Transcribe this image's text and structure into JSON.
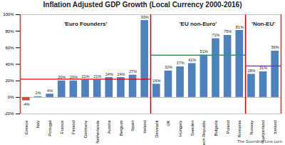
{
  "chart_data": {
    "type": "bar",
    "title": "Inflation Adjusted GDP Growth (Local Currency 2000-2016)",
    "source": "The Sounding Line.com",
    "categories": [
      "Greece",
      "Italy",
      "Portugal",
      "France",
      "Finland",
      "Germany",
      "Netherlands",
      "Austria",
      "Belgium",
      "Spain",
      "Ireland",
      "Denmark",
      "UK",
      "Hungary",
      "Sweden",
      "Czech Republic",
      "Bulgaria",
      "Poland",
      "Romania",
      "Norway",
      "Switzerland",
      "Iceland"
    ],
    "values": [
      -4,
      1,
      4,
      20,
      20,
      21,
      21,
      24,
      24,
      27,
      93,
      16,
      32,
      37,
      41,
      51,
      71,
      75,
      81,
      28,
      31,
      56
    ],
    "value_labels": [
      "-4%",
      "1%",
      "4%",
      "20%",
      "20%",
      "21%",
      "21%",
      "24%",
      "24%",
      "27%",
      "93%",
      "16%",
      "32%",
      "37%",
      "41%",
      "51%",
      "71%",
      "75%",
      "81%",
      "28%",
      "31%",
      "56%"
    ],
    "colors": [
      "#c0504d",
      "#4f81bd",
      "#4f81bd",
      "#4f81bd",
      "#4f81bd",
      "#4f81bd",
      "#4f81bd",
      "#4f81bd",
      "#4f81bd",
      "#4f81bd",
      "#4f81bd",
      "#4f81bd",
      "#4f81bd",
      "#4f81bd",
      "#4f81bd",
      "#4f81bd",
      "#4f81bd",
      "#4f81bd",
      "#4f81bd",
      "#4f81bd",
      "#4f81bd",
      "#4f81bd"
    ],
    "data_labels": true,
    "groups": [
      {
        "name": "'Euro Founders'",
        "count": 11,
        "average": 22,
        "color": "#e00000"
      },
      {
        "name": "'EU non-Euro'",
        "count": 8,
        "average": 51,
        "color": "#00b050"
      },
      {
        "name": "'Non-EU'",
        "count": 3,
        "average": 38,
        "color": "#7030a0"
      }
    ],
    "ylim": [
      -20,
      100
    ],
    "yticks": [
      {
        "value": -20,
        "label": "-20%"
      },
      {
        "value": 0,
        "label": "0%"
      },
      {
        "value": 20,
        "label": "20%"
      },
      {
        "value": 40,
        "label": "40%"
      },
      {
        "value": 60,
        "label": "60%"
      },
      {
        "value": 80,
        "label": "80%"
      },
      {
        "value": 100,
        "label": "100%"
      }
    ],
    "grid": false
  }
}
